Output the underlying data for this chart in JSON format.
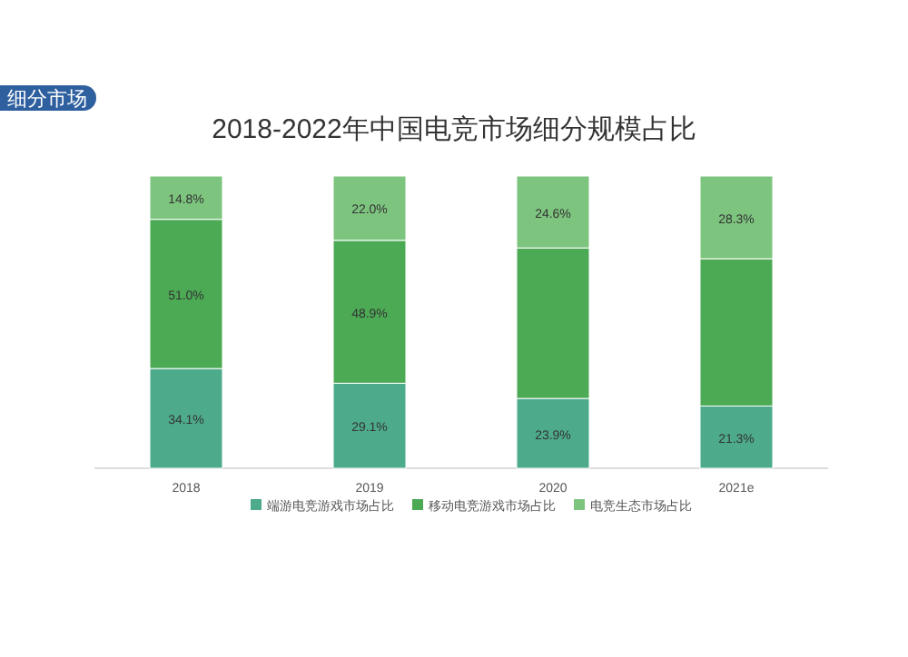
{
  "chart_data": {
    "type": "bar",
    "title": "2018-2022年中国电竞市场细分规模占比",
    "annotations": [
      "细分市场"
    ],
    "stacked": true,
    "legend": "bottom",
    "categories": [
      "2018",
      "2019",
      "2020",
      "2021e"
    ],
    "series": [
      {
        "name": "端游电竞游戏市场占比",
        "color": "#4dab8c",
        "values": [
          34.1,
          29.1,
          23.9,
          21.3
        ],
        "value_labels": [
          "34.1%",
          "29.1%",
          "23.9%",
          "21.3%"
        ]
      },
      {
        "name": "移动电竞游戏市场占比",
        "color": "#4caa55",
        "values": [
          51.0,
          48.9,
          51.5,
          50.4
        ],
        "value_labels": [
          "51.0%",
          "48.9%",
          null,
          null
        ]
      },
      {
        "name": "电竞生态市场占比",
        "color": "#7dc47f",
        "values": [
          14.8,
          22.0,
          24.6,
          28.3
        ],
        "value_labels": [
          "14.8%",
          "22.0%",
          "24.6%",
          "28.3%"
        ]
      }
    ]
  }
}
